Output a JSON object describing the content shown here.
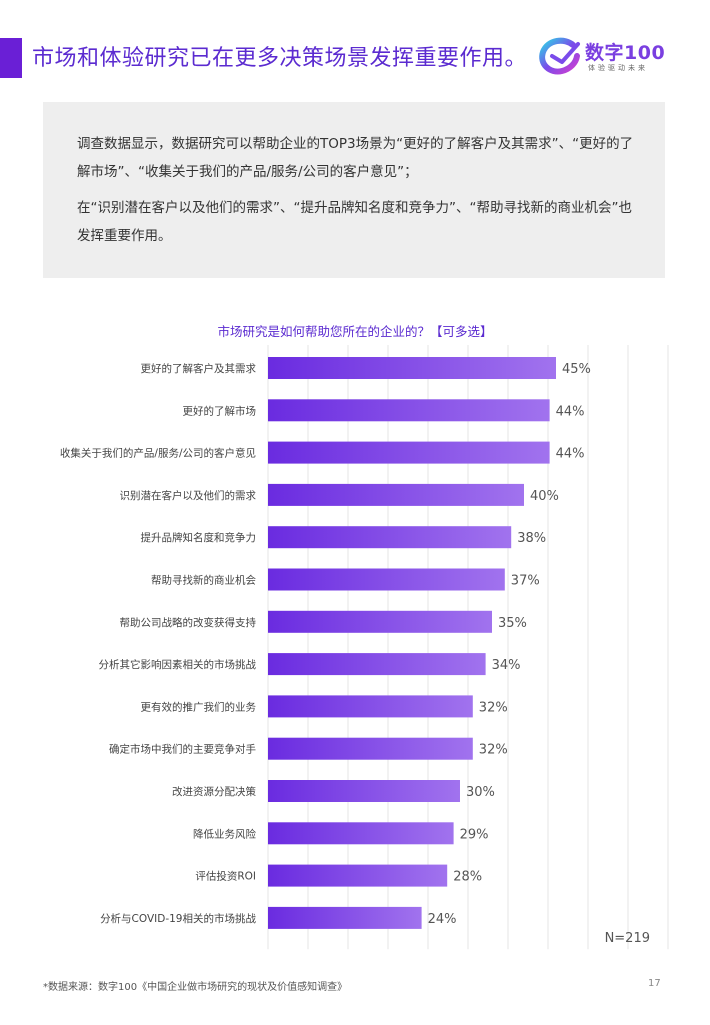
{
  "header": {
    "title": "市场和体验研究已在更多决策场景发挥重要作用。",
    "logo_name": "数字100",
    "logo_tagline": "体验驱动未来"
  },
  "summary": {
    "paragraph1": "调查数据显示，数据研究可以帮助企业的TOP3场景为“更好的了解客户及其需求”、“更好的了解市场”、“收集关于我们的产品/服务/公司的客户意见”；",
    "paragraph2": "在“识别潜在客户以及他们的需求”、“提升品牌知名度和竞争力”、“帮助寻找新的商业机会”也发挥重要作用。"
  },
  "chart_data": {
    "type": "bar",
    "orientation": "horizontal",
    "title": "市场研究是如何帮助您所在的企业的？【可多选】",
    "categories": [
      "更好的了解客户及其需求",
      "更好的了解市场",
      "收集关于我们的产品/服务/公司的客户意见",
      "识别潜在客户以及他们的需求",
      "提升品牌知名度和竞争力",
      "帮助寻找新的商业机会",
      "帮助公司战略的改变获得支持",
      "分析其它影响因素相关的市场挑战",
      "更有效的推广我们的业务",
      "确定市场中我们的主要竞争对手",
      "改进资源分配决策",
      "降低业务风险",
      "评估投资ROI",
      "分析与COVID-19相关的市场挑战"
    ],
    "values": [
      45,
      44,
      44,
      40,
      38,
      37,
      35,
      34,
      32,
      32,
      30,
      29,
      28,
      24
    ],
    "labels": [
      "45%",
      "44%",
      "44%",
      "40%",
      "38%",
      "37%",
      "35%",
      "34%",
      "32%",
      "32%",
      "30%",
      "29%",
      "28%",
      "24%"
    ],
    "xlim": [
      0,
      50
    ],
    "grid": true,
    "bar_color_start": "#6a2be0",
    "bar_color_end": "#a173ee",
    "sample_size": "N=219"
  },
  "footer": {
    "source": "*数据来源：数字100《中国企业做市场研究的现状及价值感知调查》",
    "page_number": "17"
  }
}
